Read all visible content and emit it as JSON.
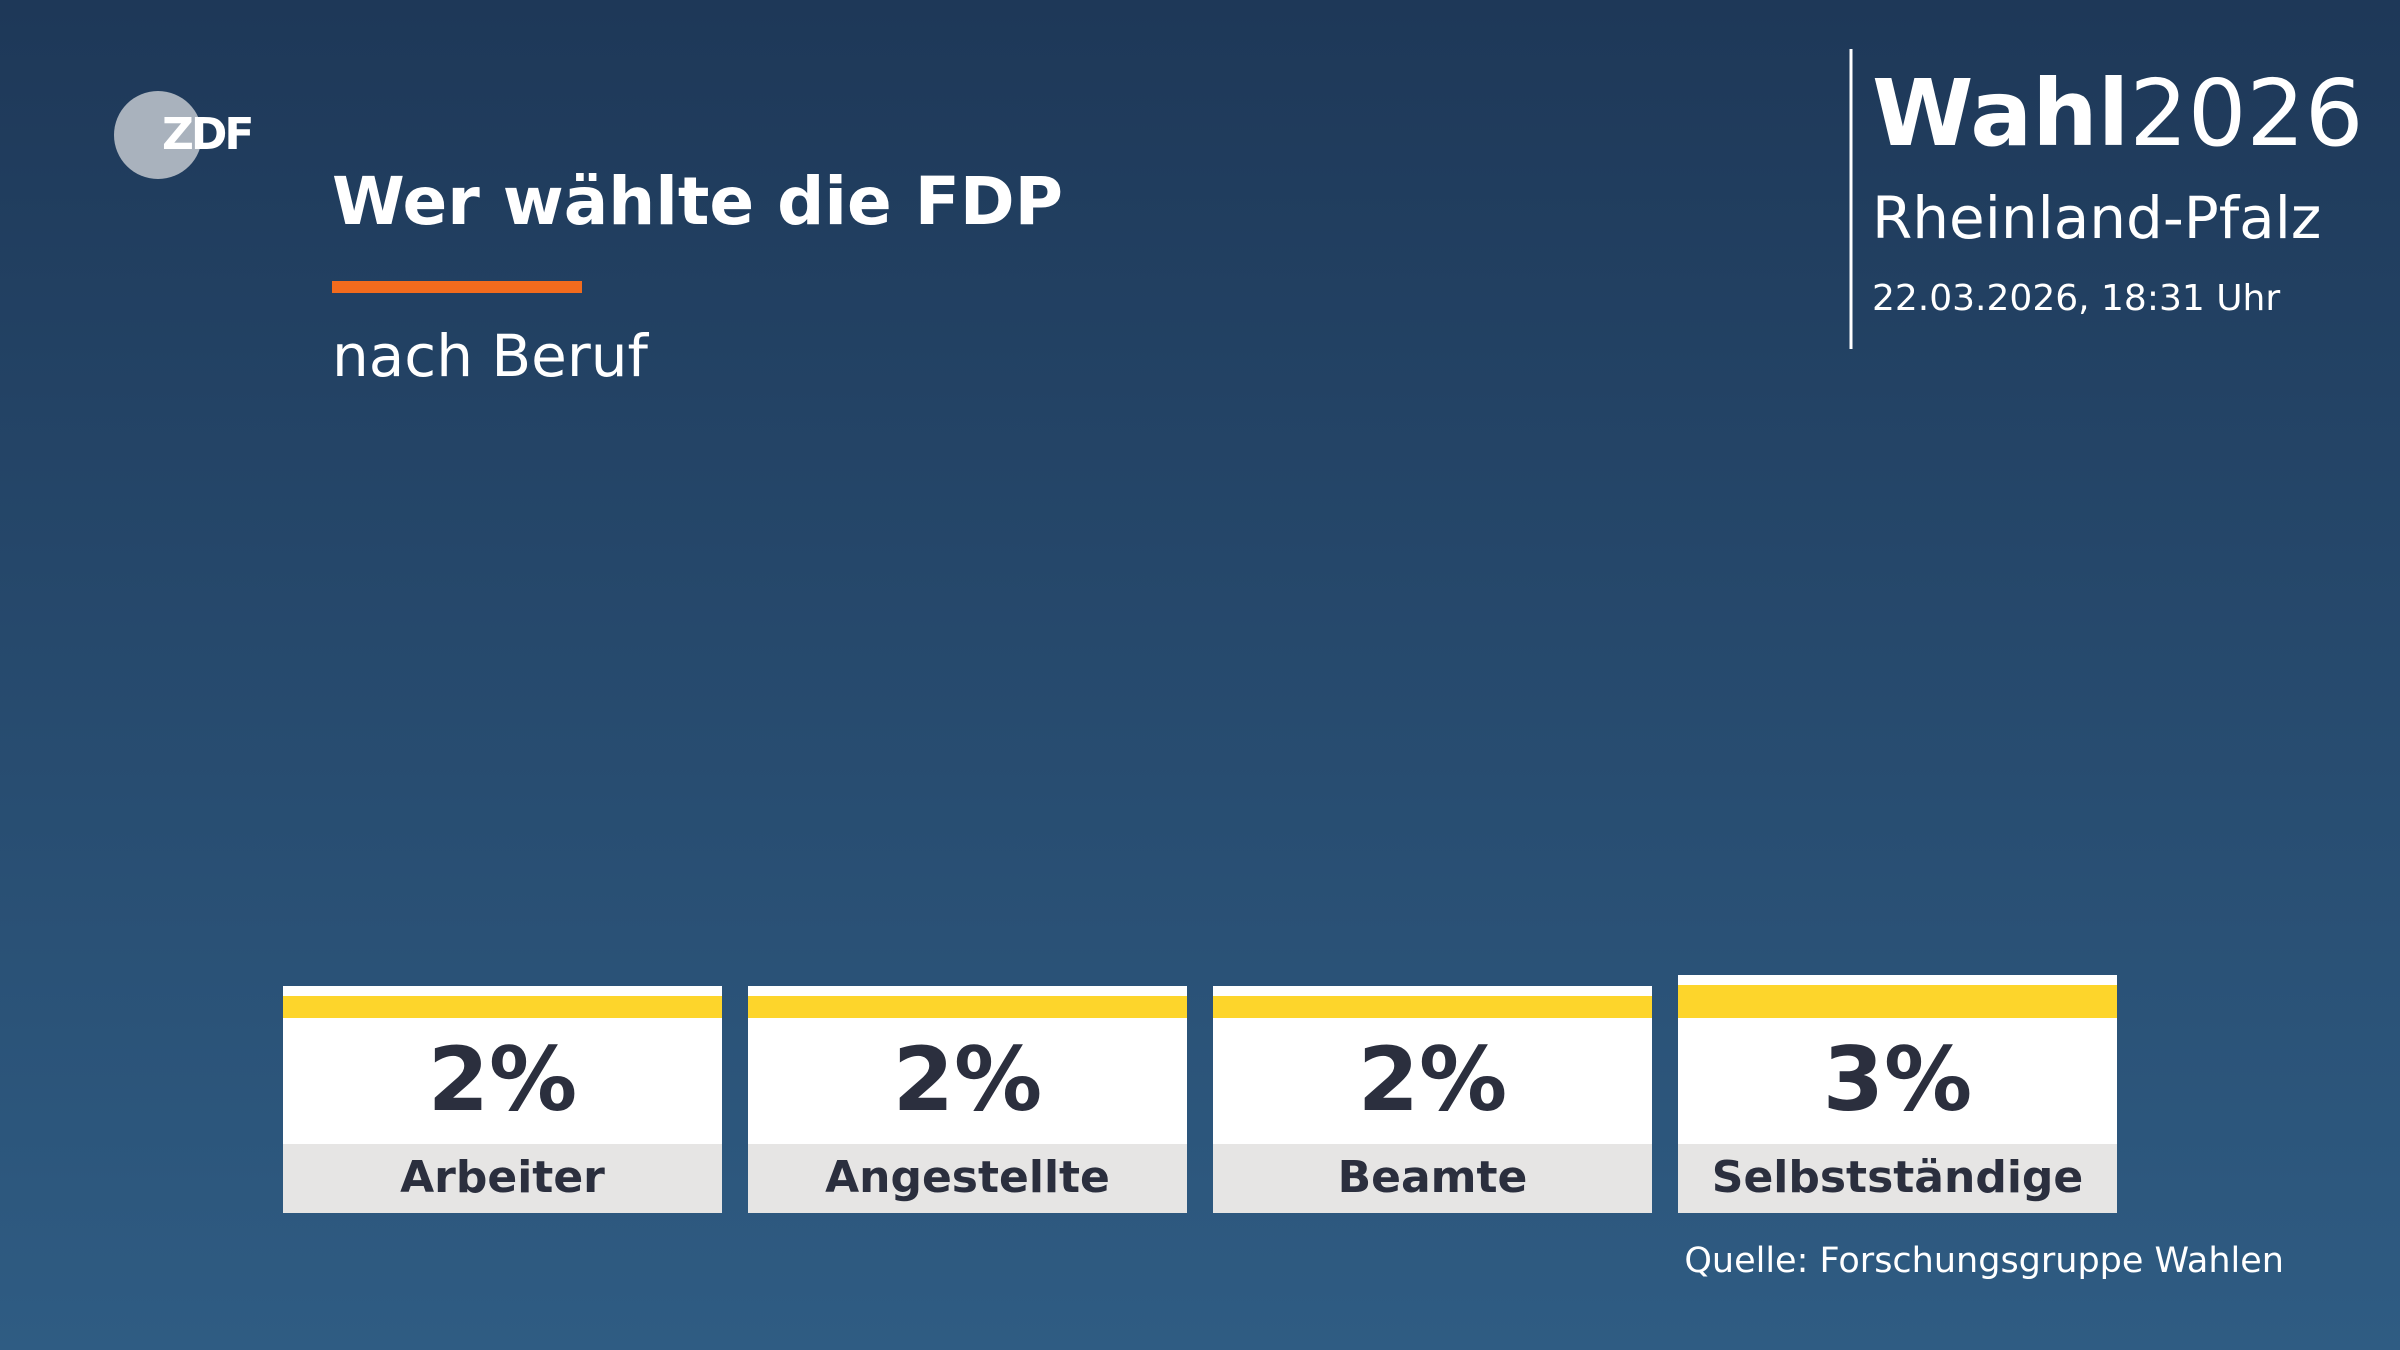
{
  "chart_data": {
    "type": "bar",
    "logo": "ZDF",
    "title": "Wer wählte die FDP",
    "subtitle": "nach Beruf",
    "header": {
      "brand": "Wahl",
      "year": "2026",
      "region": "Rheinland-Pfalz",
      "timestamp": "22.03.2026, 18:31 Uhr"
    },
    "categories": [
      "Arbeiter",
      "Angestellte",
      "Beamte",
      "Selbstständige"
    ],
    "values": [
      2,
      2,
      2,
      3
    ],
    "value_labels": [
      "2%",
      "2%",
      "2%",
      "3%"
    ],
    "color": "#fdd52b",
    "source": "Quelle: Forschungsgruppe Wahlen"
  }
}
